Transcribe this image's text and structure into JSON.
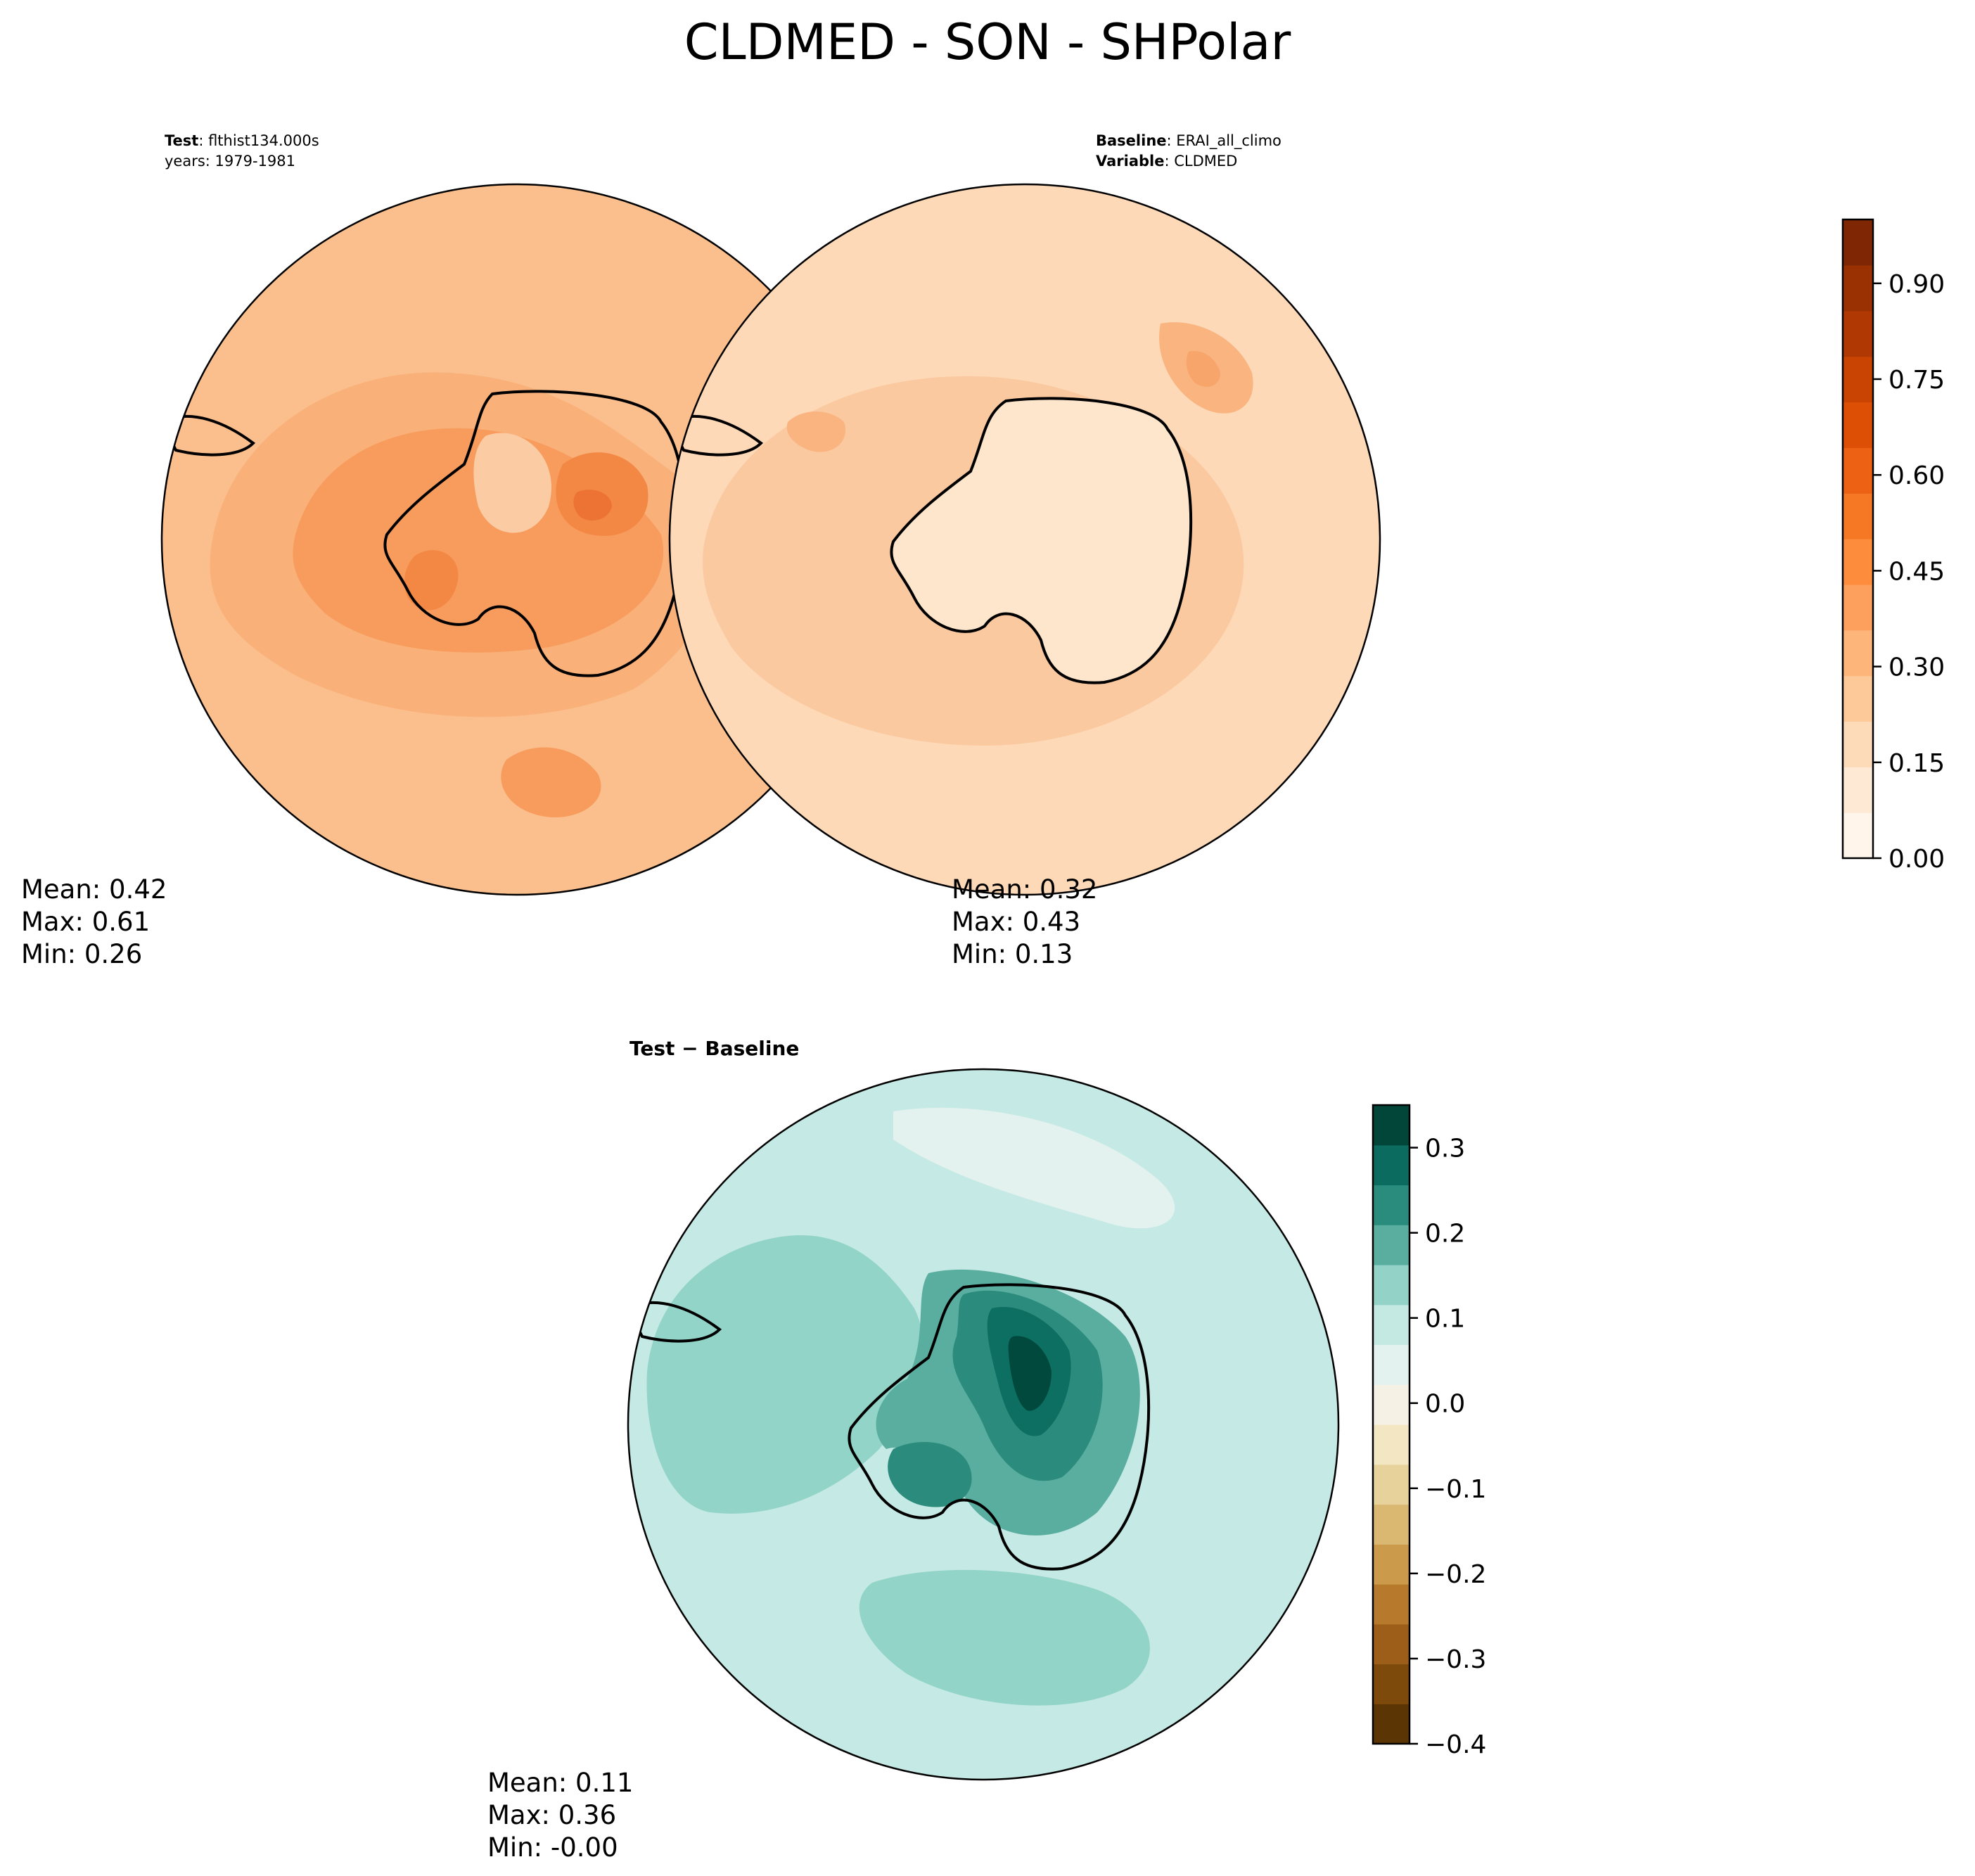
{
  "chart_data": {
    "type": "contour-map",
    "title": "CLDMED - SON - SHPolar",
    "panels": [
      {
        "id": "test",
        "header": [
          {
            "bold": "Test",
            "text": ": flthist134.000s"
          },
          {
            "bold": "",
            "text": "years: 1979-1981"
          }
        ],
        "stats": {
          "mean": "Mean:  0.42",
          "max": "Max:  0.61",
          "min": "Min:  0.26"
        },
        "levels": [
          0.35,
          0.4,
          0.45,
          0.5
        ],
        "level_colors": [
          "#f9b079",
          "#f89c5d",
          "#f38844",
          "#ec7333"
        ],
        "base_color": "#fbbf8d"
      },
      {
        "id": "baseline",
        "header": [
          {
            "bold": "Baseline",
            "text": ": ERAI_all_climo"
          },
          {
            "bold": "Variable",
            "text": ": CLDMED"
          }
        ],
        "stats": {
          "mean": "Mean:  0.32",
          "max": "Max:  0.43",
          "min": "Min:  0.13"
        },
        "levels": [
          0.3,
          0.35,
          0.4
        ],
        "level_colors": [
          "#fbc99f",
          "#f9b480",
          "#f8a56c"
        ],
        "base_color": "#fdd9b8"
      },
      {
        "id": "diff",
        "header": [
          {
            "bold": "Test − Baseline",
            "text": ""
          }
        ],
        "stats": {
          "mean": "Mean:  0.11",
          "max": "Max:  0.36",
          "min": "Min: -0.00"
        },
        "levels": [
          0.1,
          0.15,
          0.2,
          0.25,
          0.3
        ],
        "level_colors": [
          "#92d4c8",
          "#5aae9f",
          "#2b8c7d",
          "#0d6e62",
          "#01493d"
        ],
        "base_color": "#c5e9e4"
      }
    ],
    "colorbars": [
      {
        "id": "cbar-values",
        "range": [
          0.0,
          1.0
        ],
        "ticks": [
          0.0,
          0.15,
          0.3,
          0.45,
          0.6,
          0.75,
          0.9
        ],
        "tick_labels": [
          "0.00",
          "0.15",
          "0.30",
          "0.45",
          "0.60",
          "0.75",
          "0.90"
        ],
        "colors": [
          "#fff5eb",
          "#fee9d4",
          "#fedbb8",
          "#fdc999",
          "#fdb57a",
          "#fda05e",
          "#fd8d3c",
          "#f67824",
          "#ec6114",
          "#de4f06",
          "#c94302",
          "#b03802",
          "#9a3103",
          "#7f2704"
        ]
      },
      {
        "id": "cbar-diff",
        "range": [
          -0.4,
          0.35
        ],
        "ticks": [
          -0.4,
          -0.3,
          -0.2,
          -0.1,
          0.0,
          0.1,
          0.2,
          0.3
        ],
        "tick_labels": [
          "−0.4",
          "−0.3",
          "−0.2",
          "−0.1",
          "0.0",
          "0.1",
          "0.2",
          "0.3"
        ],
        "colors": [
          "#5c3505",
          "#7d4a0b",
          "#9c5e18",
          "#b77a2c",
          "#cb9a4b",
          "#dbb872",
          "#e8d29b",
          "#f2e6c3",
          "#f5f1e4",
          "#e3f2ef",
          "#c4e8e2",
          "#93d3c7",
          "#5aaea0",
          "#2a8c7d",
          "#0a6b5e",
          "#014638"
        ]
      }
    ]
  }
}
